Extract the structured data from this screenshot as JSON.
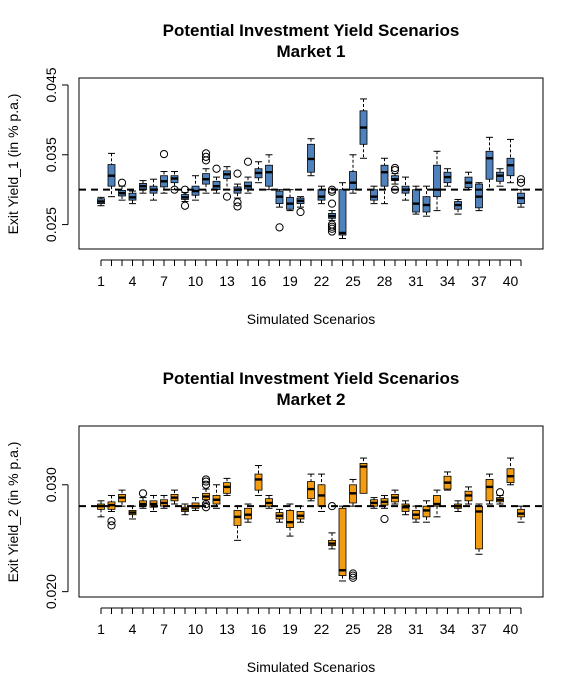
{
  "chart_data": [
    {
      "type": "boxplot",
      "title": "Potential Investment Yield Scenarios",
      "subtitle": "Market 1",
      "xlabel": "Simulated Scenarios",
      "ylabel": "Exit Yield_1 (in % p.a.)",
      "ylim": [
        0.0215,
        0.046
      ],
      "y_ticks": [
        "0.025",
        "0.035",
        "0.045"
      ],
      "y_tick_values": [
        0.025,
        0.035,
        0.045
      ],
      "x_tick_labels": [
        "1",
        "4",
        "7",
        "10",
        "13",
        "16",
        "19",
        "22",
        "25",
        "28",
        "31",
        "34",
        "37",
        "40"
      ],
      "x_tick_positions": [
        1,
        4,
        7,
        10,
        13,
        16,
        19,
        22,
        25,
        28,
        31,
        34,
        37,
        40
      ],
      "reference_line": 0.03,
      "fill_color": "#4f81bd",
      "boxes": [
        {
          "x": 1,
          "wlo": 0.0277,
          "q1": 0.028,
          "med": 0.0283,
          "q3": 0.0287,
          "whi": 0.0289,
          "out": []
        },
        {
          "x": 2,
          "wlo": 0.029,
          "q1": 0.0305,
          "med": 0.032,
          "q3": 0.0336,
          "whi": 0.0352,
          "out": []
        },
        {
          "x": 3,
          "wlo": 0.0285,
          "q1": 0.0291,
          "med": 0.0295,
          "q3": 0.0299,
          "whi": 0.0305,
          "out": [
            0.031
          ]
        },
        {
          "x": 4,
          "wlo": 0.028,
          "q1": 0.0285,
          "med": 0.0289,
          "q3": 0.0295,
          "whi": 0.0298,
          "out": []
        },
        {
          "x": 5,
          "wlo": 0.0295,
          "q1": 0.03,
          "med": 0.0305,
          "q3": 0.0309,
          "whi": 0.0313,
          "out": []
        },
        {
          "x": 6,
          "wlo": 0.0285,
          "q1": 0.0295,
          "med": 0.03,
          "q3": 0.0305,
          "whi": 0.0315,
          "out": []
        },
        {
          "x": 7,
          "wlo": 0.0295,
          "q1": 0.0304,
          "med": 0.0312,
          "q3": 0.032,
          "whi": 0.0326,
          "out": [
            0.0351
          ]
        },
        {
          "x": 8,
          "wlo": 0.03,
          "q1": 0.031,
          "med": 0.0316,
          "q3": 0.032,
          "whi": 0.0326,
          "out": [
            0.03
          ]
        },
        {
          "x": 9,
          "wlo": 0.0283,
          "q1": 0.0286,
          "med": 0.0289,
          "q3": 0.0293,
          "whi": 0.0296,
          "out": [
            0.0277,
            0.03
          ]
        },
        {
          "x": 10,
          "wlo": 0.0285,
          "q1": 0.0292,
          "med": 0.0298,
          "q3": 0.0305,
          "whi": 0.032,
          "out": []
        },
        {
          "x": 11,
          "wlo": 0.0295,
          "q1": 0.0308,
          "med": 0.0315,
          "q3": 0.0323,
          "whi": 0.033,
          "out": [
            0.0342,
            0.0347,
            0.0352
          ]
        },
        {
          "x": 12,
          "wlo": 0.0295,
          "q1": 0.03,
          "med": 0.0305,
          "q3": 0.0312,
          "whi": 0.0318,
          "out": [
            0.033
          ]
        },
        {
          "x": 13,
          "wlo": 0.03,
          "q1": 0.0316,
          "med": 0.0322,
          "q3": 0.0327,
          "whi": 0.0333,
          "out": [
            0.029
          ]
        },
        {
          "x": 14,
          "wlo": 0.0288,
          "q1": 0.0295,
          "med": 0.03,
          "q3": 0.0304,
          "whi": 0.0308,
          "out": [
            0.0276,
            0.0282,
            0.0323
          ]
        },
        {
          "x": 15,
          "wlo": 0.0295,
          "q1": 0.0301,
          "med": 0.0305,
          "q3": 0.0311,
          "whi": 0.0318,
          "out": [
            0.034
          ]
        },
        {
          "x": 16,
          "wlo": 0.031,
          "q1": 0.0317,
          "med": 0.0324,
          "q3": 0.033,
          "whi": 0.034,
          "out": []
        },
        {
          "x": 17,
          "wlo": 0.03,
          "q1": 0.0305,
          "med": 0.0325,
          "q3": 0.0335,
          "whi": 0.035,
          "out": []
        },
        {
          "x": 18,
          "wlo": 0.0275,
          "q1": 0.028,
          "med": 0.029,
          "q3": 0.0298,
          "whi": 0.03,
          "out": [
            0.0246
          ]
        },
        {
          "x": 19,
          "wlo": 0.027,
          "q1": 0.0272,
          "med": 0.028,
          "q3": 0.0289,
          "whi": 0.03,
          "out": []
        },
        {
          "x": 20,
          "wlo": 0.0275,
          "q1": 0.028,
          "med": 0.0284,
          "q3": 0.0288,
          "whi": 0.029,
          "out": [
            0.0268
          ]
        },
        {
          "x": 21,
          "wlo": 0.032,
          "q1": 0.0325,
          "med": 0.0344,
          "q3": 0.0365,
          "whi": 0.0373,
          "out": []
        },
        {
          "x": 22,
          "wlo": 0.028,
          "q1": 0.0285,
          "med": 0.029,
          "q3": 0.03,
          "whi": 0.0305,
          "out": []
        },
        {
          "x": 23,
          "wlo": 0.0256,
          "q1": 0.0259,
          "med": 0.0262,
          "q3": 0.0266,
          "whi": 0.027,
          "out": [
            0.024,
            0.0244,
            0.0247,
            0.025,
            0.028,
            0.0297,
            0.03
          ]
        },
        {
          "x": 24,
          "wlo": 0.023,
          "q1": 0.0235,
          "med": 0.0238,
          "q3": 0.03,
          "whi": 0.031,
          "out": []
        },
        {
          "x": 25,
          "wlo": 0.0295,
          "q1": 0.03,
          "med": 0.031,
          "q3": 0.0326,
          "whi": 0.035,
          "out": []
        },
        {
          "x": 26,
          "wlo": 0.0345,
          "q1": 0.0365,
          "med": 0.0389,
          "q3": 0.0413,
          "whi": 0.043,
          "out": []
        },
        {
          "x": 27,
          "wlo": 0.028,
          "q1": 0.0285,
          "med": 0.029,
          "q3": 0.03,
          "whi": 0.0305,
          "out": []
        },
        {
          "x": 28,
          "wlo": 0.028,
          "q1": 0.0305,
          "med": 0.0325,
          "q3": 0.0335,
          "whi": 0.0345,
          "out": []
        },
        {
          "x": 29,
          "wlo": 0.0308,
          "q1": 0.0313,
          "med": 0.0315,
          "q3": 0.032,
          "whi": 0.0323,
          "out": [
            0.03,
            0.0328,
            0.0331
          ]
        },
        {
          "x": 30,
          "wlo": 0.0285,
          "q1": 0.0295,
          "med": 0.03,
          "q3": 0.0305,
          "whi": 0.0318,
          "out": []
        },
        {
          "x": 31,
          "wlo": 0.0265,
          "q1": 0.0268,
          "med": 0.028,
          "q3": 0.03,
          "whi": 0.0305,
          "out": []
        },
        {
          "x": 32,
          "wlo": 0.0262,
          "q1": 0.0268,
          "med": 0.0278,
          "q3": 0.029,
          "whi": 0.0305,
          "out": []
        },
        {
          "x": 33,
          "wlo": 0.027,
          "q1": 0.029,
          "med": 0.03,
          "q3": 0.0335,
          "whi": 0.0355,
          "out": []
        },
        {
          "x": 34,
          "wlo": 0.0305,
          "q1": 0.031,
          "med": 0.0318,
          "q3": 0.0325,
          "whi": 0.033,
          "out": []
        },
        {
          "x": 35,
          "wlo": 0.0265,
          "q1": 0.0272,
          "med": 0.0278,
          "q3": 0.0283,
          "whi": 0.0286,
          "out": []
        },
        {
          "x": 36,
          "wlo": 0.03,
          "q1": 0.0303,
          "med": 0.031,
          "q3": 0.0318,
          "whi": 0.0325,
          "out": []
        },
        {
          "x": 37,
          "wlo": 0.027,
          "q1": 0.0274,
          "med": 0.029,
          "q3": 0.0308,
          "whi": 0.031,
          "out": []
        },
        {
          "x": 38,
          "wlo": 0.03,
          "q1": 0.0315,
          "med": 0.0345,
          "q3": 0.0355,
          "whi": 0.0375,
          "out": []
        },
        {
          "x": 39,
          "wlo": 0.0305,
          "q1": 0.0312,
          "med": 0.032,
          "q3": 0.0325,
          "whi": 0.033,
          "out": []
        },
        {
          "x": 40,
          "wlo": 0.031,
          "q1": 0.032,
          "med": 0.0335,
          "q3": 0.0345,
          "whi": 0.0372,
          "out": []
        },
        {
          "x": 41,
          "wlo": 0.0275,
          "q1": 0.028,
          "med": 0.0288,
          "q3": 0.0295,
          "whi": 0.03,
          "out": [
            0.031,
            0.0315
          ]
        }
      ]
    },
    {
      "type": "boxplot",
      "title": "Potential Investment Yield Scenarios",
      "subtitle": "Market 2",
      "xlabel": "Simulated Scenarios",
      "ylabel": "Exit Yield_2 (in % p.a.)",
      "ylim": [
        0.0195,
        0.0355
      ],
      "y_ticks": [
        "0.020",
        "0.030"
      ],
      "y_tick_values": [
        0.02,
        0.03
      ],
      "x_tick_labels": [
        "1",
        "4",
        "7",
        "10",
        "13",
        "16",
        "19",
        "22",
        "25",
        "28",
        "31",
        "34",
        "37",
        "40"
      ],
      "x_tick_positions": [
        1,
        4,
        7,
        10,
        13,
        16,
        19,
        22,
        25,
        28,
        31,
        34,
        37,
        40
      ],
      "reference_line": 0.028,
      "fill_color": "#f39c12",
      "boxes": [
        {
          "x": 1,
          "wlo": 0.027,
          "q1": 0.0277,
          "med": 0.028,
          "q3": 0.0282,
          "whi": 0.0285,
          "out": []
        },
        {
          "x": 2,
          "wlo": 0.0275,
          "q1": 0.0277,
          "med": 0.0281,
          "q3": 0.0284,
          "whi": 0.029,
          "out": [
            0.0262,
            0.0266
          ]
        },
        {
          "x": 3,
          "wlo": 0.028,
          "q1": 0.0284,
          "med": 0.0288,
          "q3": 0.0291,
          "whi": 0.0295,
          "out": []
        },
        {
          "x": 4,
          "wlo": 0.0268,
          "q1": 0.0272,
          "med": 0.0274,
          "q3": 0.0276,
          "whi": 0.028,
          "out": []
        },
        {
          "x": 5,
          "wlo": 0.0278,
          "q1": 0.028,
          "med": 0.0282,
          "q3": 0.0285,
          "whi": 0.0288,
          "out": [
            0.0292
          ]
        },
        {
          "x": 6,
          "wlo": 0.0275,
          "q1": 0.0279,
          "med": 0.0282,
          "q3": 0.0285,
          "whi": 0.029,
          "out": []
        },
        {
          "x": 7,
          "wlo": 0.0278,
          "q1": 0.028,
          "med": 0.0283,
          "q3": 0.0286,
          "whi": 0.029,
          "out": []
        },
        {
          "x": 8,
          "wlo": 0.0282,
          "q1": 0.0285,
          "med": 0.0288,
          "q3": 0.0291,
          "whi": 0.0295,
          "out": []
        },
        {
          "x": 9,
          "wlo": 0.0272,
          "q1": 0.0275,
          "med": 0.0277,
          "q3": 0.0279,
          "whi": 0.0282,
          "out": []
        },
        {
          "x": 10,
          "wlo": 0.0276,
          "q1": 0.0278,
          "med": 0.028,
          "q3": 0.0283,
          "whi": 0.0288,
          "out": []
        },
        {
          "x": 11,
          "wlo": 0.0283,
          "q1": 0.0286,
          "med": 0.0289,
          "q3": 0.0292,
          "whi": 0.0296,
          "out": [
            0.0279,
            0.0282,
            0.03,
            0.0303,
            0.0305
          ]
        },
        {
          "x": 12,
          "wlo": 0.0278,
          "q1": 0.0282,
          "med": 0.0286,
          "q3": 0.029,
          "whi": 0.03,
          "out": []
        },
        {
          "x": 13,
          "wlo": 0.029,
          "q1": 0.0292,
          "med": 0.0298,
          "q3": 0.0302,
          "whi": 0.0306,
          "out": []
        },
        {
          "x": 14,
          "wlo": 0.0248,
          "q1": 0.0262,
          "med": 0.027,
          "q3": 0.0276,
          "whi": 0.028,
          "out": []
        },
        {
          "x": 15,
          "wlo": 0.0265,
          "q1": 0.0268,
          "med": 0.0272,
          "q3": 0.0278,
          "whi": 0.0282,
          "out": []
        },
        {
          "x": 16,
          "wlo": 0.029,
          "q1": 0.0295,
          "med": 0.0305,
          "q3": 0.031,
          "whi": 0.0318,
          "out": []
        },
        {
          "x": 17,
          "wlo": 0.0278,
          "q1": 0.028,
          "med": 0.0283,
          "q3": 0.0287,
          "whi": 0.029,
          "out": []
        },
        {
          "x": 18,
          "wlo": 0.0265,
          "q1": 0.0268,
          "med": 0.0271,
          "q3": 0.0274,
          "whi": 0.0277,
          "out": []
        },
        {
          "x": 19,
          "wlo": 0.0252,
          "q1": 0.026,
          "med": 0.0265,
          "q3": 0.0276,
          "whi": 0.0282,
          "out": []
        },
        {
          "x": 20,
          "wlo": 0.0265,
          "q1": 0.0268,
          "med": 0.0271,
          "q3": 0.0275,
          "whi": 0.028,
          "out": []
        },
        {
          "x": 21,
          "wlo": 0.0285,
          "q1": 0.0287,
          "med": 0.0296,
          "q3": 0.0303,
          "whi": 0.031,
          "out": []
        },
        {
          "x": 22,
          "wlo": 0.0275,
          "q1": 0.028,
          "med": 0.029,
          "q3": 0.03,
          "whi": 0.031,
          "out": []
        },
        {
          "x": 23,
          "wlo": 0.024,
          "q1": 0.0243,
          "med": 0.0245,
          "q3": 0.0248,
          "whi": 0.0255,
          "out": [
            0.028
          ]
        },
        {
          "x": 24,
          "wlo": 0.021,
          "q1": 0.0215,
          "med": 0.022,
          "q3": 0.0278,
          "whi": 0.028,
          "out": []
        },
        {
          "x": 25,
          "wlo": 0.028,
          "q1": 0.0283,
          "med": 0.0292,
          "q3": 0.03,
          "whi": 0.0305,
          "out": [
            0.0213,
            0.0215,
            0.0217
          ]
        },
        {
          "x": 26,
          "wlo": 0.0295,
          "q1": 0.0292,
          "med": 0.0317,
          "q3": 0.032,
          "whi": 0.0325,
          "out": []
        },
        {
          "x": 27,
          "wlo": 0.0278,
          "q1": 0.028,
          "med": 0.0283,
          "q3": 0.0286,
          "whi": 0.0288,
          "out": []
        },
        {
          "x": 28,
          "wlo": 0.0278,
          "q1": 0.0281,
          "med": 0.0284,
          "q3": 0.0287,
          "whi": 0.029,
          "out": [
            0.0268
          ]
        },
        {
          "x": 29,
          "wlo": 0.0282,
          "q1": 0.0284,
          "med": 0.0288,
          "q3": 0.0291,
          "whi": 0.0295,
          "out": []
        },
        {
          "x": 30,
          "wlo": 0.0272,
          "q1": 0.0275,
          "med": 0.0279,
          "q3": 0.0282,
          "whi": 0.0285,
          "out": []
        },
        {
          "x": 31,
          "wlo": 0.0265,
          "q1": 0.0268,
          "med": 0.0272,
          "q3": 0.0276,
          "whi": 0.028,
          "out": []
        },
        {
          "x": 32,
          "wlo": 0.0265,
          "q1": 0.027,
          "med": 0.0276,
          "q3": 0.028,
          "whi": 0.0285,
          "out": []
        },
        {
          "x": 33,
          "wlo": 0.027,
          "q1": 0.028,
          "med": 0.0282,
          "q3": 0.029,
          "whi": 0.0295,
          "out": []
        },
        {
          "x": 34,
          "wlo": 0.0295,
          "q1": 0.0296,
          "med": 0.0302,
          "q3": 0.0308,
          "whi": 0.0312,
          "out": []
        },
        {
          "x": 35,
          "wlo": 0.0275,
          "q1": 0.0278,
          "med": 0.028,
          "q3": 0.0282,
          "whi": 0.0285,
          "out": []
        },
        {
          "x": 36,
          "wlo": 0.0282,
          "q1": 0.0285,
          "med": 0.029,
          "q3": 0.0294,
          "whi": 0.0298,
          "out": []
        },
        {
          "x": 37,
          "wlo": 0.0235,
          "q1": 0.024,
          "med": 0.0275,
          "q3": 0.028,
          "whi": 0.0282,
          "out": []
        },
        {
          "x": 38,
          "wlo": 0.0282,
          "q1": 0.0285,
          "med": 0.0298,
          "q3": 0.0305,
          "whi": 0.031,
          "out": []
        },
        {
          "x": 39,
          "wlo": 0.0282,
          "q1": 0.0284,
          "med": 0.0286,
          "q3": 0.0288,
          "whi": 0.029,
          "out": [
            0.0293
          ]
        },
        {
          "x": 40,
          "wlo": 0.03,
          "q1": 0.0302,
          "med": 0.0308,
          "q3": 0.0315,
          "whi": 0.0325,
          "out": []
        },
        {
          "x": 41,
          "wlo": 0.0265,
          "q1": 0.027,
          "med": 0.0273,
          "q3": 0.0277,
          "whi": 0.028,
          "out": []
        }
      ]
    }
  ]
}
